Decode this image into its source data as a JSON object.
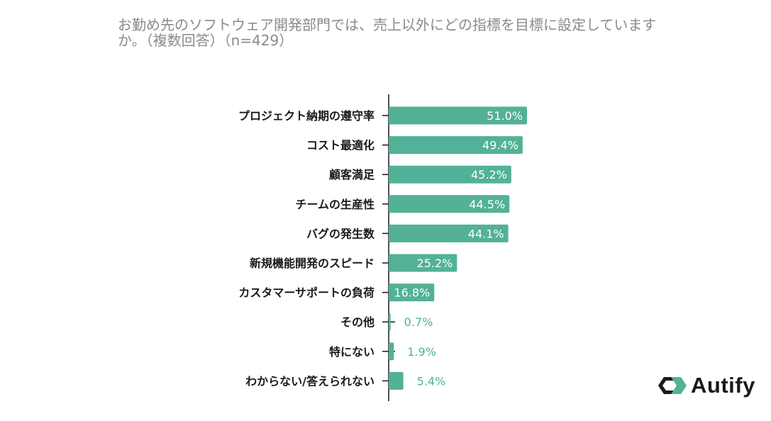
{
  "chart_data": {
    "type": "bar",
    "orientation": "horizontal",
    "title": "お勤め先のソフトウェア開発部門では、売上以外にどの指標を目標に設定していますか。（複数回答）（n=429）",
    "categories": [
      "プロジェクト納期の遵守率",
      "コスト最適化",
      "顧客満足",
      "チームの生産性",
      "バグの発生数",
      "新規機能開発のスピード",
      "カスタマーサポートの負荷",
      "その他",
      "特にない",
      "わからない/答えられない"
    ],
    "values": [
      51.0,
      49.4,
      45.2,
      44.5,
      44.1,
      25.2,
      16.8,
      0.7,
      1.9,
      5.4
    ],
    "value_labels": [
      "51.0%",
      "49.4%",
      "45.2%",
      "44.5%",
      "44.1%",
      "25.2%",
      "16.8%",
      "0.7%",
      "1.9%",
      "5.4%"
    ],
    "unit": "%",
    "xlim": [
      0,
      100
    ],
    "bar_color": "#52b196",
    "xlabel": "",
    "ylabel": ""
  },
  "brand": {
    "name": "Autify",
    "color": "#1a1a1a"
  }
}
